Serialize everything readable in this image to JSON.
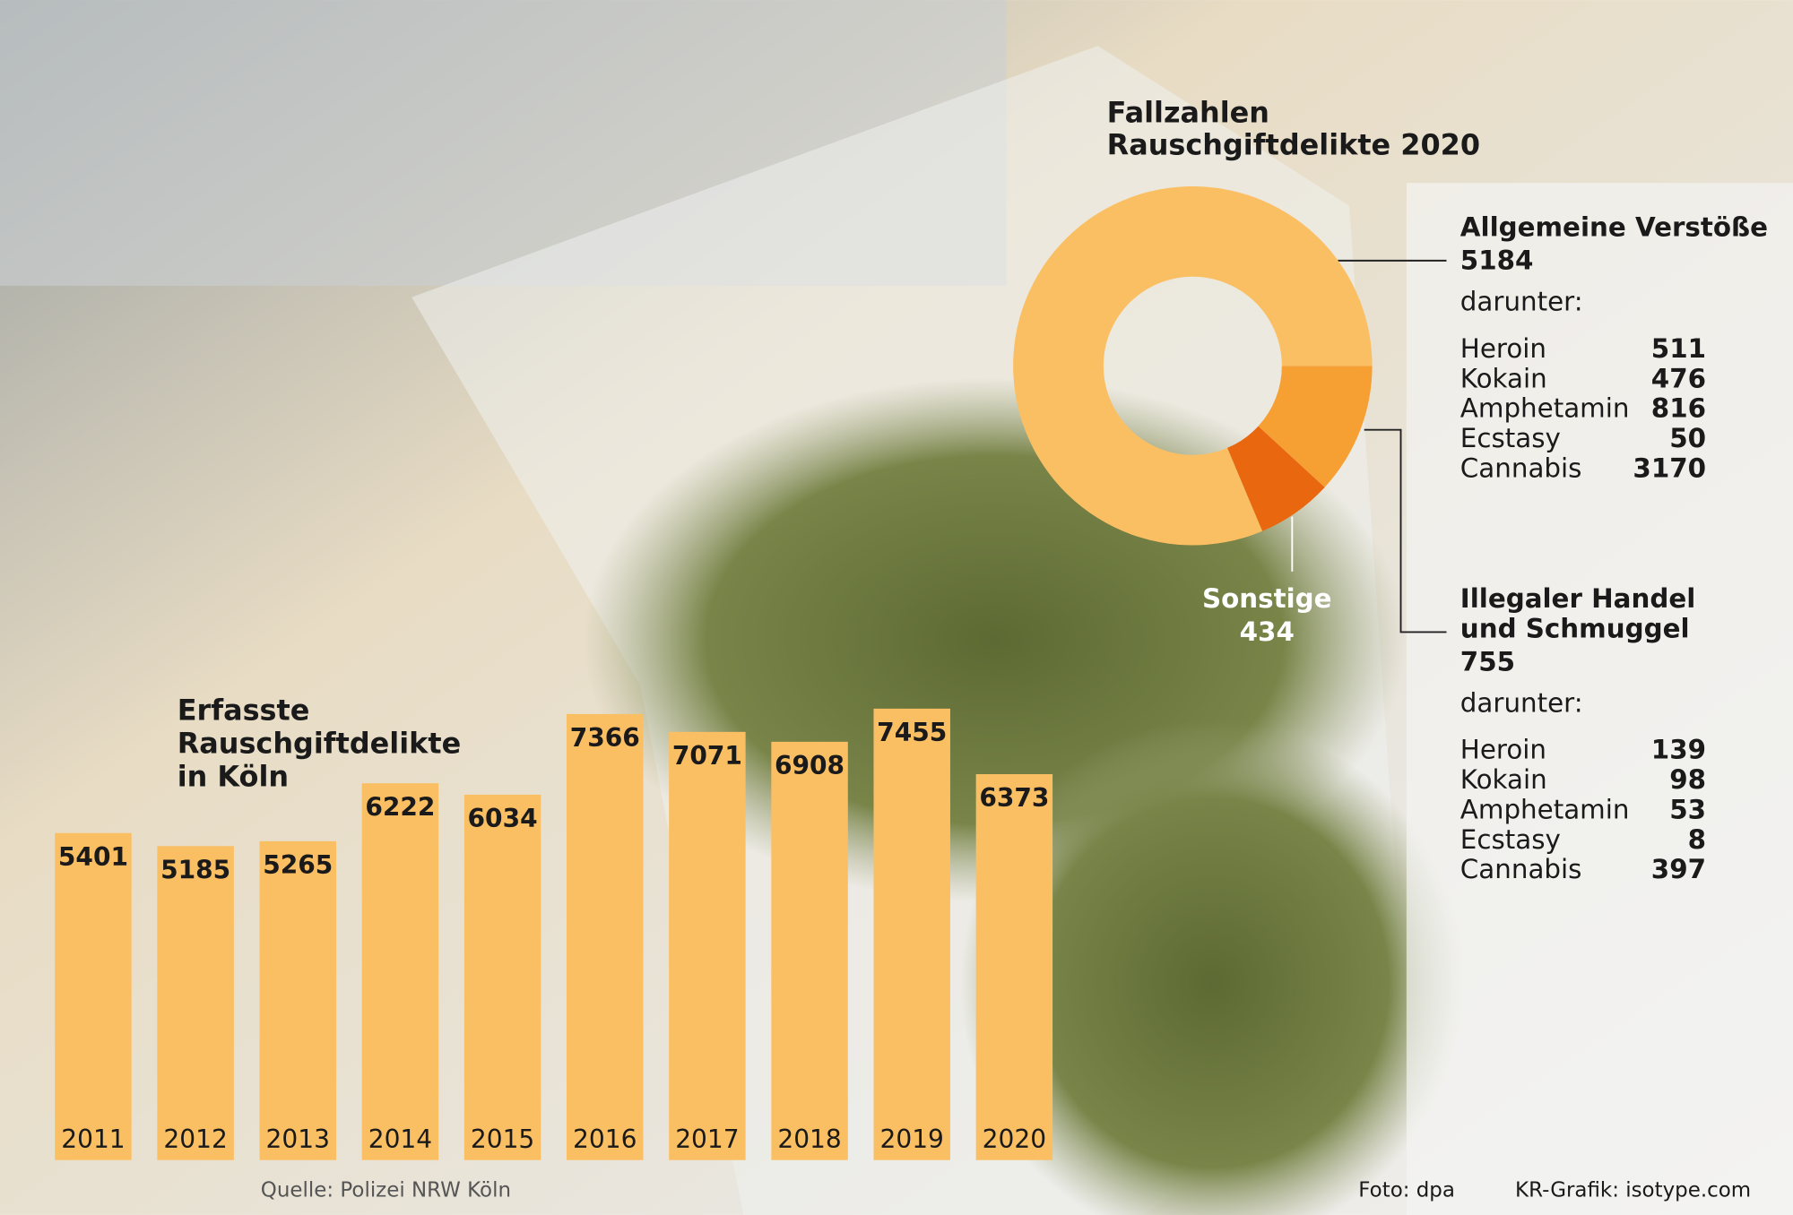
{
  "chart_data": [
    {
      "type": "bar",
      "title": [
        "Erfasste",
        "Rauschgiftdelikte",
        "in Köln"
      ],
      "categories": [
        "2011",
        "2012",
        "2013",
        "2014",
        "2015",
        "2016",
        "2017",
        "2018",
        "2019",
        "2020"
      ],
      "values": [
        5401,
        5185,
        5265,
        6222,
        6034,
        7366,
        7071,
        6908,
        7455,
        6373
      ],
      "color": "#fbbf63"
    },
    {
      "type": "pie",
      "title": [
        "Fallzahlen",
        "Rauschgiftdelikte 2020"
      ],
      "segments": [
        {
          "name": [
            "Illegaler Handel",
            "und Schmuggel"
          ],
          "value": 755,
          "color": "#f6a033",
          "breakdown_label": "darunter:",
          "breakdown": [
            {
              "name": "Heroin",
              "value": 139
            },
            {
              "name": "Kokain",
              "value": 98
            },
            {
              "name": "Amphetamin",
              "value": 53
            },
            {
              "name": "Ecstasy",
              "value": 8
            },
            {
              "name": "Cannabis",
              "value": 397
            }
          ]
        },
        {
          "name": [
            "Sonstige"
          ],
          "value": 434,
          "color": "#e8670f"
        },
        {
          "name": [
            "Allgemeine Verstöße"
          ],
          "value": 5184,
          "color": "#fbbf63",
          "breakdown_label": "darunter:",
          "breakdown": [
            {
              "name": "Heroin",
              "value": 511
            },
            {
              "name": "Kokain",
              "value": 476
            },
            {
              "name": "Amphetamin",
              "value": 816
            },
            {
              "name": "Ecstasy",
              "value": 50
            },
            {
              "name": "Cannabis",
              "value": 3170
            }
          ]
        }
      ]
    }
  ],
  "footer": {
    "source": "Quelle: Polizei NRW Köln",
    "photo": "Foto: dpa",
    "graphic": "KR-Grafik: isotype.com"
  }
}
